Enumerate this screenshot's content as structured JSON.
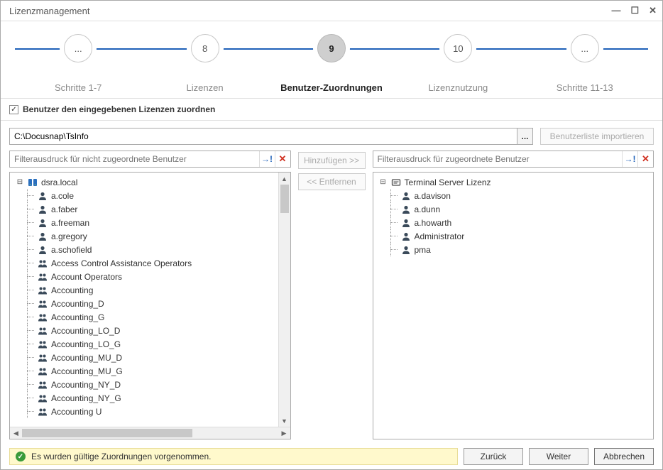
{
  "window": {
    "title": "Lizenzmanagement"
  },
  "wizard": {
    "steps": [
      {
        "num": "...",
        "label": "Schritte 1-7",
        "active": false
      },
      {
        "num": "8",
        "label": "Lizenzen",
        "active": false
      },
      {
        "num": "9",
        "label": "Benutzer-Zuordnungen",
        "active": true
      },
      {
        "num": "10",
        "label": "Lizenznutzung",
        "active": false
      },
      {
        "num": "...",
        "label": "Schritte 11-13",
        "active": false
      }
    ]
  },
  "checkbox": {
    "checked": true,
    "label": "Benutzer den eingegebenen Lizenzen zuordnen"
  },
  "path": {
    "value": "C:\\Docusnap\\TsInfo",
    "browse": "...",
    "import_label": "Benutzerliste importieren"
  },
  "filters": {
    "left_placeholder": "Filterausdruck für nicht zugeordnete Benutzer",
    "right_placeholder": "Filterausdruck für zugeordnete Benutzer"
  },
  "buttons": {
    "add": "Hinzufügen >>",
    "remove": "<< Entfernen"
  },
  "left_tree": {
    "root": "dsra.local",
    "children": [
      {
        "icon": "user",
        "label": "a.cole"
      },
      {
        "icon": "user",
        "label": "a.faber"
      },
      {
        "icon": "user",
        "label": "a.freeman"
      },
      {
        "icon": "user",
        "label": "a.gregory"
      },
      {
        "icon": "user",
        "label": "a.schofield"
      },
      {
        "icon": "group",
        "label": "Access Control Assistance Operators"
      },
      {
        "icon": "group",
        "label": "Account Operators"
      },
      {
        "icon": "group",
        "label": "Accounting"
      },
      {
        "icon": "group",
        "label": "Accounting_D"
      },
      {
        "icon": "group",
        "label": "Accounting_G"
      },
      {
        "icon": "group",
        "label": "Accounting_LO_D"
      },
      {
        "icon": "group",
        "label": "Accounting_LO_G"
      },
      {
        "icon": "group",
        "label": "Accounting_MU_D"
      },
      {
        "icon": "group",
        "label": "Accounting_MU_G"
      },
      {
        "icon": "group",
        "label": "Accounting_NY_D"
      },
      {
        "icon": "group",
        "label": "Accounting_NY_G"
      },
      {
        "icon": "group",
        "label": "Accounting U"
      }
    ]
  },
  "right_tree": {
    "root": "Terminal Server Lizenz",
    "children": [
      {
        "icon": "user",
        "label": "a.davison"
      },
      {
        "icon": "user",
        "label": "a.dunn"
      },
      {
        "icon": "user",
        "label": "a.howarth"
      },
      {
        "icon": "user",
        "label": "Administrator"
      },
      {
        "icon": "user",
        "label": "pma"
      }
    ]
  },
  "status": {
    "text": "Es wurden gültige Zuordnungen vorgenommen."
  },
  "footer": {
    "back": "Zurück",
    "next": "Weiter",
    "cancel": "Abbrechen"
  },
  "colors": {
    "wizard_line": "#1e60b8",
    "status_bg": "#fff9cc",
    "status_border": "#e8dd99",
    "status_ok": "#3a9b3a",
    "icon_user": "#3a4a5a",
    "icon_group": "#3a4a5a",
    "icon_server": "#2a6fbf",
    "icon_license": "#4a4a4a"
  }
}
